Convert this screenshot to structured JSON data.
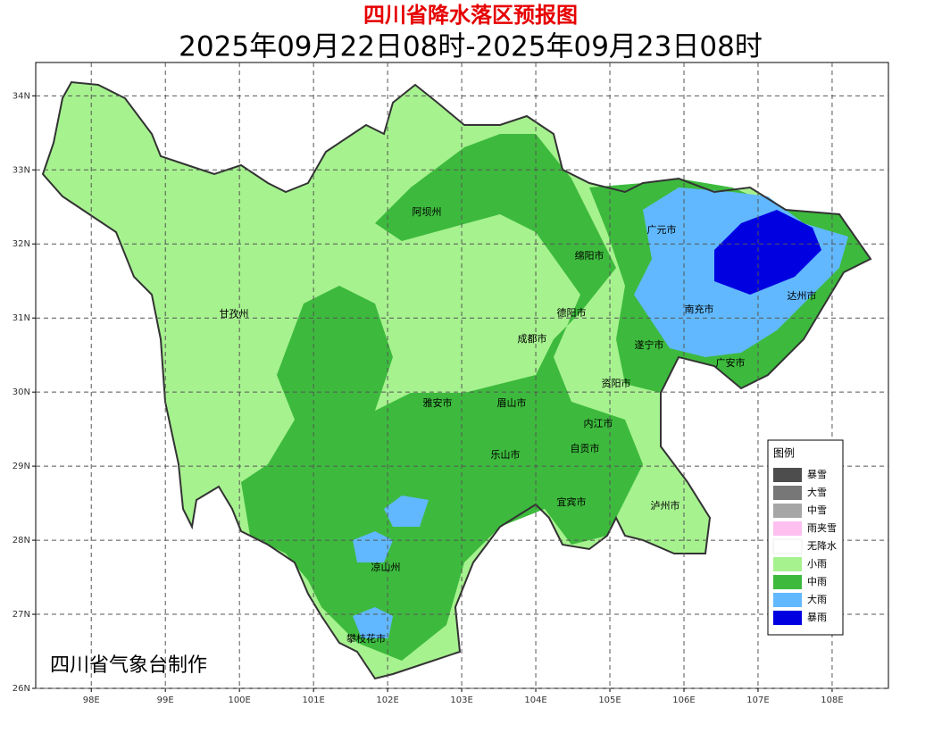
{
  "header": {
    "title": "四川省降水落区预报图",
    "subtitle": "2025年09月22日08时-2025年09月23日08时"
  },
  "map": {
    "xlim": [
      97.25,
      108.76
    ],
    "ylim": [
      26,
      34.45
    ],
    "xticks": [
      {
        "value": 98,
        "label": "98E"
      },
      {
        "value": 99,
        "label": "99E"
      },
      {
        "value": 100,
        "label": "100E"
      },
      {
        "value": 101,
        "label": "101E"
      },
      {
        "value": 102,
        "label": "102E"
      },
      {
        "value": 103,
        "label": "103E"
      },
      {
        "value": 104,
        "label": "104E"
      },
      {
        "value": 105,
        "label": "105E"
      },
      {
        "value": 106,
        "label": "106E"
      },
      {
        "value": 107,
        "label": "107E"
      },
      {
        "value": 108,
        "label": "108E"
      }
    ],
    "yticks": [
      {
        "value": 26,
        "label": "26N"
      },
      {
        "value": 27,
        "label": "27N"
      },
      {
        "value": 28,
        "label": "28N"
      },
      {
        "value": 29,
        "label": "29N"
      },
      {
        "value": 30,
        "label": "30N"
      },
      {
        "value": 31,
        "label": "31N"
      },
      {
        "value": 32,
        "label": "32N"
      },
      {
        "value": 33,
        "label": "33N"
      },
      {
        "value": 34,
        "label": "34N"
      }
    ],
    "grid": true,
    "regions": [
      "阿坝州",
      "甘孜州",
      "广元市",
      "绵阳市",
      "达州市",
      "南充市",
      "德阳市",
      "成都市",
      "遂宁市",
      "广安市",
      "资阳市",
      "雅安市",
      "眉山市",
      "内江市",
      "自贡市",
      "乐山市",
      "宜宾市",
      "泸州市",
      "凉山州",
      "攀枝花市"
    ]
  },
  "legend": {
    "title": "图例",
    "items": [
      {
        "label": "暴雪",
        "color": "#4d4d4d"
      },
      {
        "label": "大雪",
        "color": "#777777"
      },
      {
        "label": "中雪",
        "color": "#a6a6a6"
      },
      {
        "label": "雨夹雪",
        "color": "#ffc0f0"
      },
      {
        "label": "无降水",
        "color": "#ffffff"
      },
      {
        "label": "小雨",
        "color": "#a6f28f"
      },
      {
        "label": "中雨",
        "color": "#3dba3d"
      },
      {
        "label": "大雨",
        "color": "#61b8ff"
      },
      {
        "label": "暴雨",
        "color": "#0000e1"
      }
    ]
  },
  "credit": "四川省气象台制作"
}
